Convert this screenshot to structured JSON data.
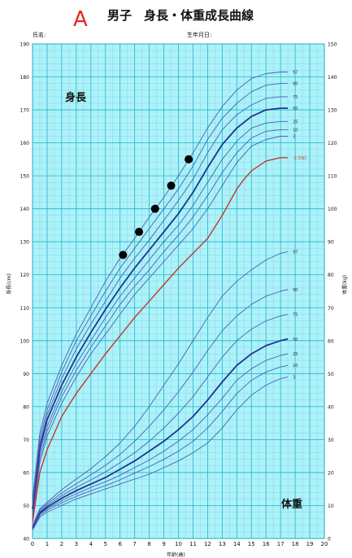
{
  "header": {
    "panel_letter": "A",
    "title": "男子　身長・体重成長曲線",
    "name_label": "氏名:",
    "birthdate_label": "生年月日:"
  },
  "colors": {
    "background": "#ffffff",
    "plot_fill": "#aef1f8",
    "grid_major": "#1ab6cf",
    "grid_minor": "#6fd8e8",
    "percentile_line": "#4f5fb3",
    "median_line": "#23318f",
    "patient_curve": "#c0392b",
    "patient_points": "#000000",
    "panel_letter": "#e8261f"
  },
  "chart_data": {
    "type": "line",
    "title": "男子　身長・体重成長曲線",
    "x": [
      0,
      1,
      2,
      3,
      4,
      5,
      6,
      7,
      8,
      9,
      10,
      11,
      12,
      13,
      14,
      15,
      16,
      17,
      18,
      19,
      20
    ],
    "xlim": [
      0,
      20
    ],
    "xlabel": "年齢(歳)",
    "xticks": [
      "0",
      "1",
      "2",
      "3",
      "4",
      "5",
      "6",
      "7",
      "8",
      "9",
      "10",
      "11",
      "12",
      "13",
      "14",
      "15",
      "16",
      "17",
      "18",
      "19",
      "20"
    ],
    "left_axis": {
      "label": "身長(cm)",
      "ylim": [
        40,
        190
      ],
      "ticks": [
        "40",
        "50",
        "60",
        "70",
        "80",
        "90",
        "100",
        "110",
        "120",
        "130",
        "140",
        "150",
        "160",
        "170",
        "180",
        "190"
      ]
    },
    "right_axis": {
      "label": "体重(kg)",
      "ylim": [
        0,
        150
      ],
      "ticks": [
        "0",
        "10",
        "20",
        "30",
        "40",
        "50",
        "60",
        "70",
        "80",
        "90",
        "100",
        "110",
        "120",
        "130",
        "140",
        "150"
      ]
    },
    "section_labels": {
      "height": "身長",
      "weight": "体重"
    },
    "height_percentiles": {
      "ages": [
        0,
        0.5,
        1,
        2,
        3,
        4,
        5,
        6,
        7,
        8,
        9,
        10,
        11,
        12,
        13,
        14,
        15,
        16,
        17,
        17.5
      ],
      "series": [
        {
          "name": "3",
          "values": [
            46,
            63,
            71,
            81,
            89,
            96,
            102,
            108,
            114,
            119,
            124,
            129,
            134,
            140,
            147,
            154,
            159,
            161,
            162,
            162
          ]
        },
        {
          "name": "10",
          "values": [
            47,
            64.5,
            72.5,
            83,
            91,
            98,
            104.5,
            111,
            116.5,
            121.5,
            127,
            132,
            137.5,
            144,
            151,
            157,
            161.5,
            163.5,
            164,
            164
          ]
        },
        {
          "name": "25",
          "values": [
            48,
            66,
            74,
            84.5,
            93,
            100,
            107,
            113.5,
            119,
            124.5,
            130,
            135,
            141,
            148,
            155,
            160.5,
            164.5,
            166,
            166.5,
            166.5
          ]
        },
        {
          "name": "50",
          "values": [
            49,
            67.5,
            76,
            86.5,
            95,
            102.5,
            109.5,
            116,
            122,
            127.5,
            133,
            138.5,
            145,
            152.5,
            159.5,
            164.5,
            168,
            170,
            170.5,
            170.5
          ]
        },
        {
          "name": "75",
          "values": [
            50,
            69,
            77.5,
            88.5,
            97.5,
            105,
            112,
            119,
            125,
            130.5,
            136.5,
            142.5,
            149,
            157,
            164,
            168.5,
            171.5,
            173.5,
            174,
            174
          ]
        },
        {
          "name": "90",
          "values": [
            51,
            70.5,
            79,
            90.5,
            100,
            107.5,
            115,
            122,
            128,
            134,
            140,
            146,
            153,
            161,
            167.5,
            172,
            175.5,
            177.5,
            178,
            178
          ]
        },
        {
          "name": "97",
          "values": [
            52,
            72,
            81,
            92.5,
            102,
            110,
            118,
            125,
            131,
            137.5,
            143.5,
            150,
            157,
            164.5,
            171,
            176,
            179.5,
            181,
            181.5,
            181.5
          ]
        }
      ]
    },
    "height_sd_curve": {
      "name": "-2.5SD",
      "ages": [
        0,
        0.5,
        1,
        2,
        3,
        4,
        5,
        6,
        7,
        8,
        9,
        10,
        11,
        12,
        13,
        14,
        14.5,
        15,
        16,
        17,
        17.5
      ],
      "values": [
        45,
        60,
        67,
        77,
        84,
        90,
        96,
        101.5,
        107,
        112,
        117,
        122,
        126.5,
        131,
        138,
        146,
        149,
        151.5,
        154.5,
        155.5,
        155.5
      ]
    },
    "weight_percentiles": {
      "ages": [
        0,
        0.5,
        1,
        2,
        3,
        4,
        5,
        6,
        7,
        8,
        9,
        10,
        11,
        12,
        13,
        14,
        15,
        16,
        17,
        17.5
      ],
      "series": [
        {
          "name": "3",
          "values": [
            2.5,
            6.5,
            8,
            10,
            12,
            13.5,
            15,
            16.5,
            18,
            19.5,
            21.5,
            23.5,
            26,
            29,
            33.5,
            39,
            43.5,
            46.5,
            48.5,
            49
          ]
        },
        {
          "name": "10",
          "values": [
            2.8,
            7,
            8.6,
            10.8,
            12.8,
            14.5,
            16,
            17.8,
            19.8,
            21.8,
            24,
            26.5,
            29.5,
            33.5,
            38.5,
            44,
            48,
            50.5,
            52,
            52.5
          ]
        },
        {
          "name": "25",
          "values": [
            3,
            7.4,
            9,
            11.5,
            13.6,
            15.5,
            17.2,
            19.2,
            21.5,
            23.8,
            26.5,
            29.5,
            33,
            37.5,
            42.5,
            48,
            51.5,
            54,
            55.5,
            56
          ]
        },
        {
          "name": "50",
          "values": [
            3.2,
            7.8,
            9.5,
            12.2,
            14.5,
            16.5,
            18.5,
            21,
            23.5,
            26.5,
            29.5,
            33,
            37,
            42,
            47.5,
            52.5,
            56,
            58.5,
            60,
            60.5
          ]
        },
        {
          "name": "75",
          "values": [
            3.4,
            8.2,
            10,
            13,
            15.5,
            17.8,
            20.2,
            23,
            26,
            29.5,
            33.5,
            38,
            43,
            49,
            55,
            60,
            63.5,
            66,
            67.5,
            68
          ]
        },
        {
          "name": "90",
          "values": [
            3.6,
            8.6,
            10.5,
            13.8,
            16.6,
            19.3,
            22.2,
            25.5,
            29.5,
            34,
            39,
            44.5,
            50.5,
            57,
            63,
            67.5,
            71,
            73.5,
            75,
            75.5
          ]
        },
        {
          "name": "97",
          "values": [
            3.9,
            9,
            11,
            14.8,
            18,
            21.2,
            24.8,
            29,
            34,
            40,
            46.5,
            53,
            60,
            67,
            73.5,
            78,
            81.5,
            84.5,
            86.5,
            87
          ]
        }
      ]
    },
    "patient_height_points": {
      "ages": [
        6.2,
        7.3,
        8.4,
        9.5,
        10.7
      ],
      "values": [
        126,
        133,
        140,
        147,
        155
      ]
    },
    "grid": true
  }
}
